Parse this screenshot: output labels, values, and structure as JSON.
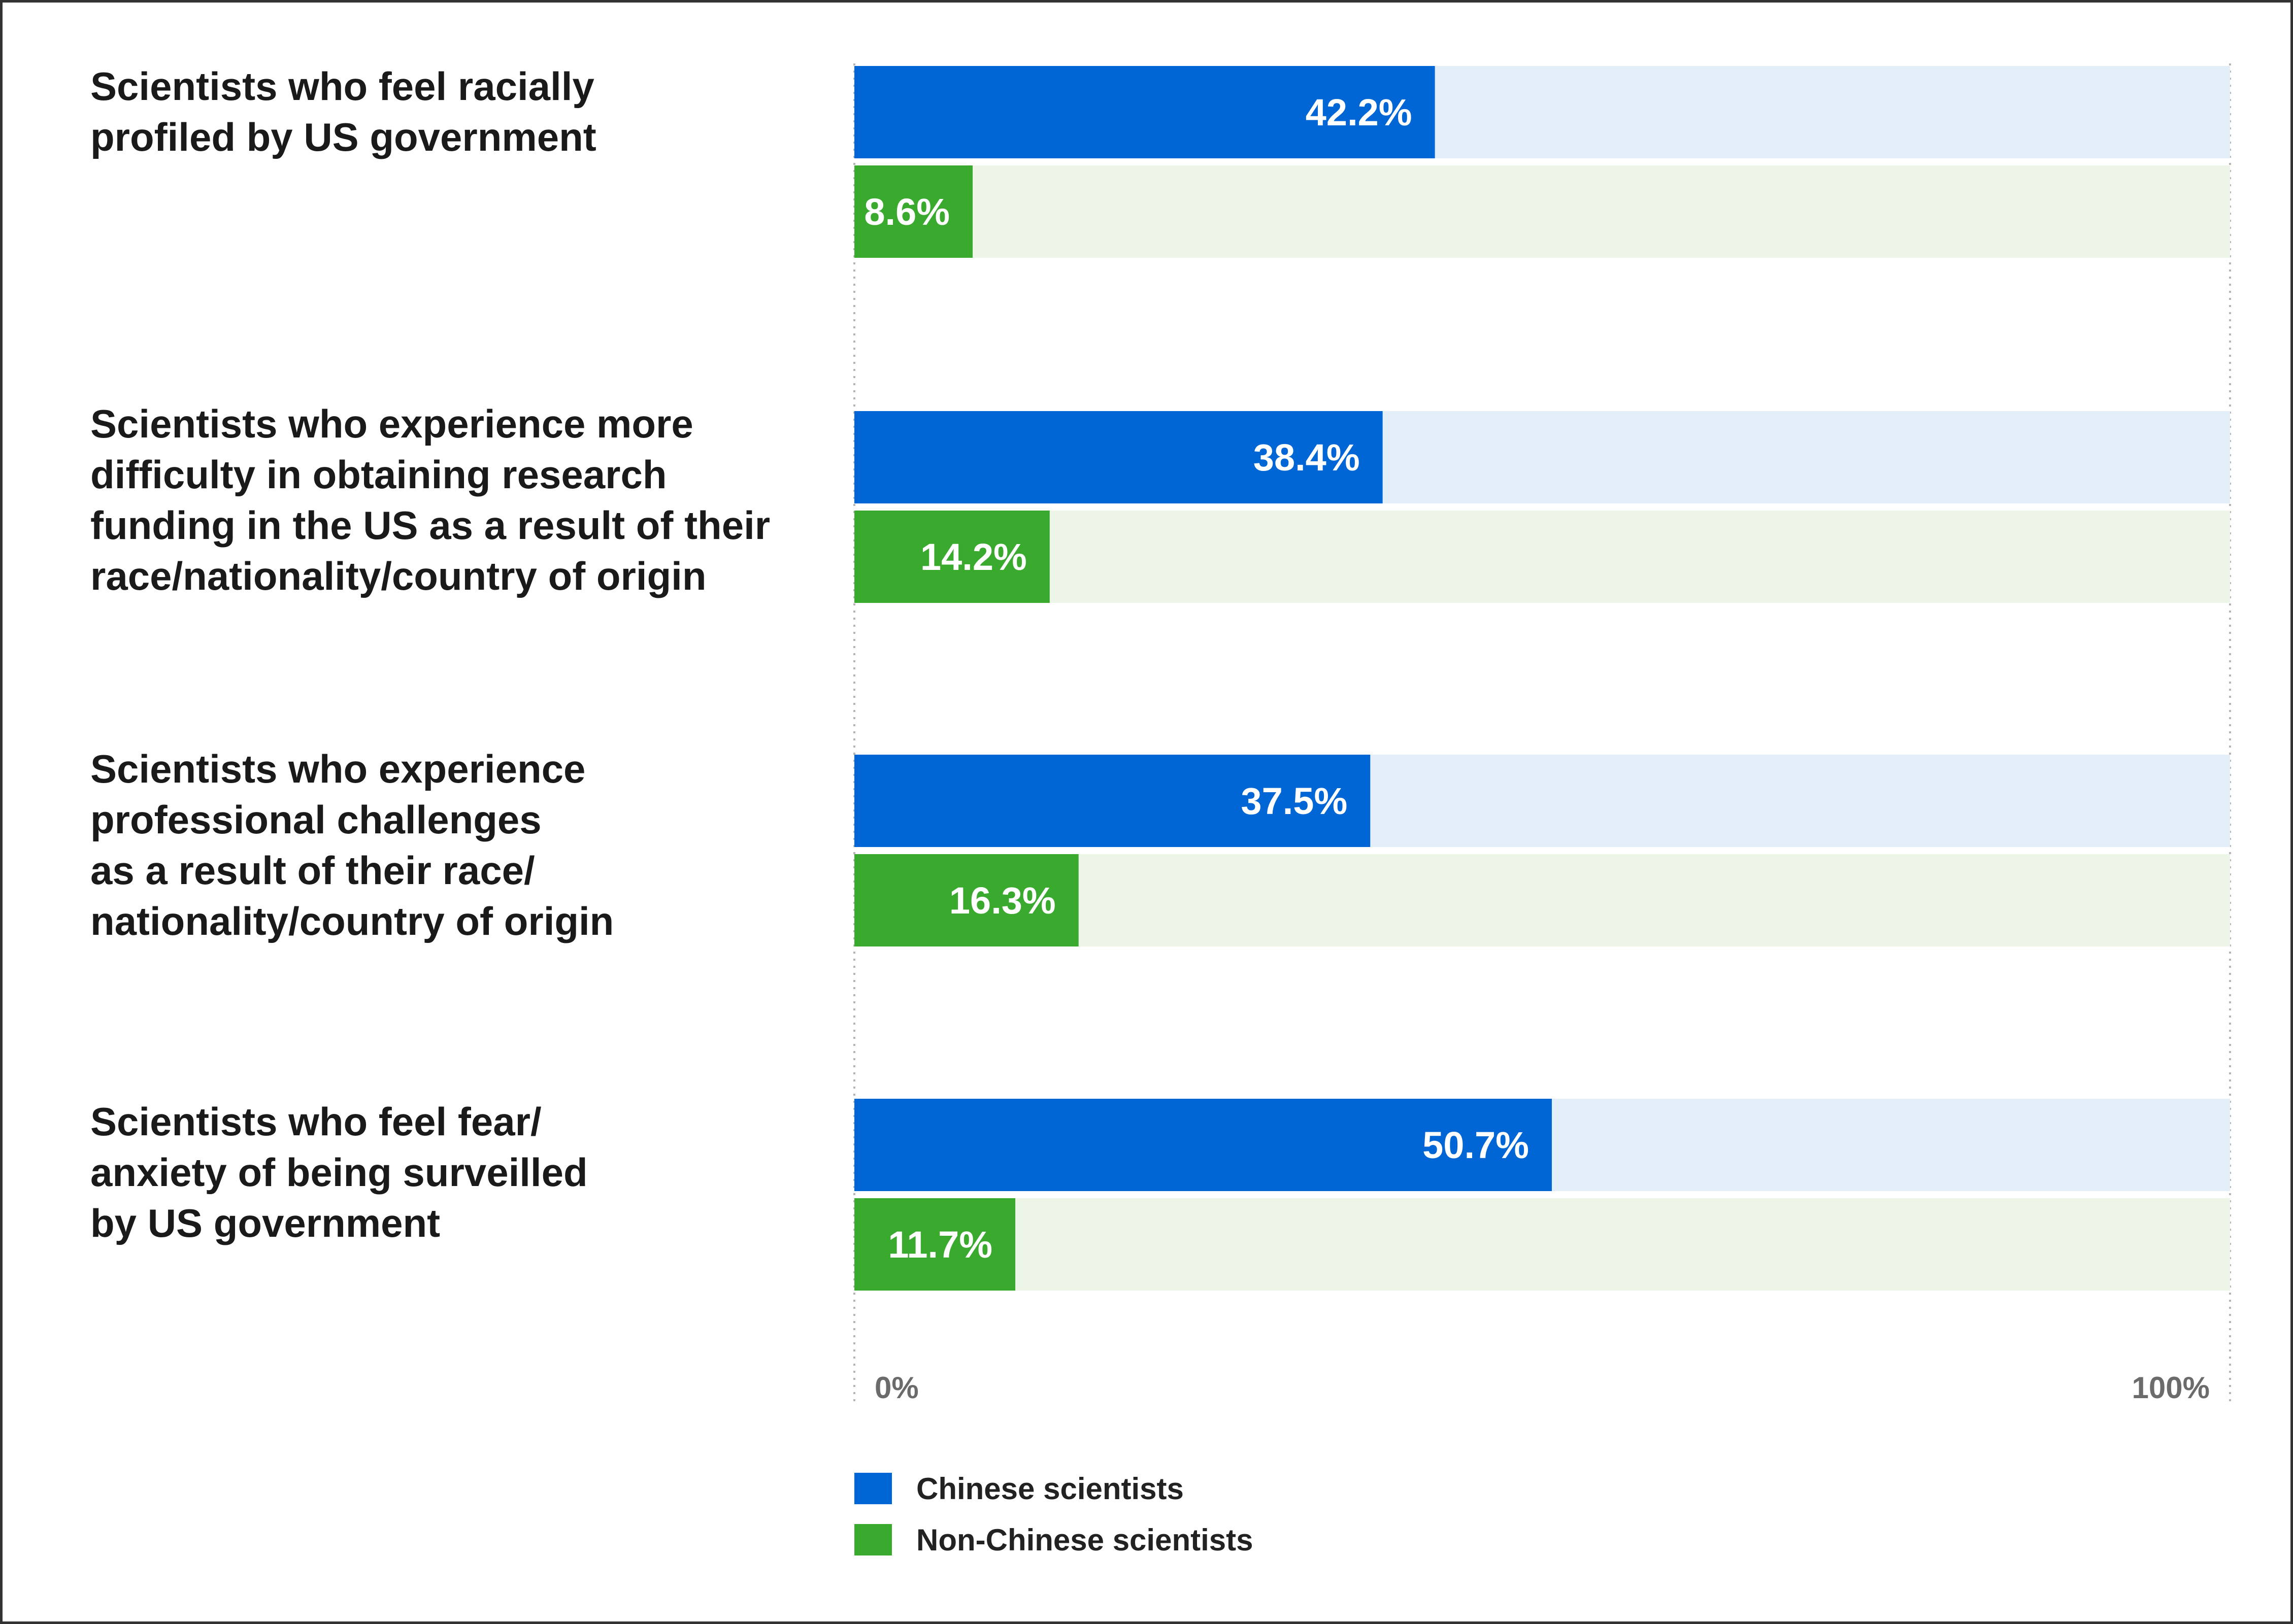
{
  "chart_data": {
    "type": "bar",
    "orientation": "horizontal",
    "categories": [
      "Scientists who feel racially\nprofiled by US government",
      "Scientists who experience more\ndifficulty in obtaining research\nfunding in the US as a result of their\nrace/nationality/country of origin",
      "Scientists who experience\nprofessional challenges\nas a result of their race/\nnationality/country of origin",
      "Scientists who feel fear/\nanxiety of being surveilled\nby US government"
    ],
    "series": [
      {
        "name": "Chinese scientists",
        "color": "#0066d6",
        "track_color": "#e4eef9",
        "values": [
          42.2,
          38.4,
          37.5,
          50.7
        ],
        "labels": [
          "42.2%",
          "38.4%",
          "37.5%",
          "50.7%"
        ]
      },
      {
        "name": "Non-Chinese scientists",
        "color": "#3aaa2f",
        "track_color": "#ecf5e8",
        "values": [
          8.6,
          14.2,
          16.3,
          11.7
        ],
        "labels": [
          "8.6%",
          "14.2%",
          "16.3%",
          "11.7%"
        ]
      }
    ],
    "xlim": [
      0,
      100
    ],
    "axis_labels": {
      "min": "0%",
      "max": "100%"
    },
    "legend": {
      "position": "bottom-left",
      "entries": [
        "Chinese scientists",
        "Non-Chinese scientists"
      ]
    },
    "title": "",
    "xlabel": "",
    "ylabel": ""
  }
}
